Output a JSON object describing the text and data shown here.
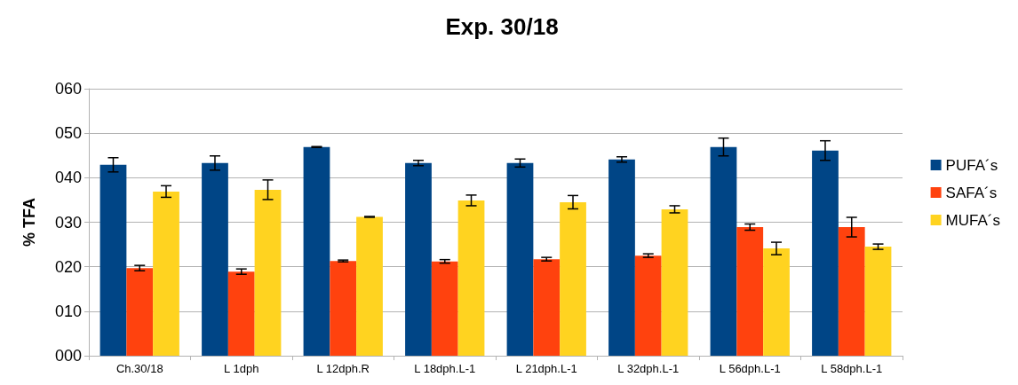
{
  "chart_data": {
    "type": "bar",
    "title": "Exp. 30/18",
    "ylabel": "% TFA",
    "categories": [
      "Ch.30/18",
      "L 1dph",
      "L 12dph.R",
      "L 18dph.L-1",
      "L 21dph.L-1",
      "L 32dph.L-1",
      "L 56dph.L-1",
      "L 58dph.L-1"
    ],
    "series": [
      {
        "name": "PUFA´s",
        "color": "#004586",
        "values": [
          42.9,
          43.3,
          46.9,
          43.3,
          43.3,
          44.1,
          46.9,
          46.1
        ],
        "errors": [
          1.6,
          1.6,
          0.1,
          0.6,
          0.9,
          0.6,
          2.0,
          2.2
        ]
      },
      {
        "name": "SAFA´s",
        "color": "#ff420e",
        "values": [
          19.7,
          18.9,
          21.3,
          21.2,
          21.7,
          22.5,
          28.9,
          28.9
        ],
        "errors": [
          0.6,
          0.6,
          0.2,
          0.4,
          0.4,
          0.4,
          0.7,
          2.2
        ]
      },
      {
        "name": "MUFA´s",
        "color": "#ffd320",
        "values": [
          36.9,
          37.3,
          31.2,
          34.9,
          34.5,
          32.9,
          24.1,
          24.5
        ],
        "errors": [
          1.3,
          2.2,
          0.1,
          1.2,
          1.5,
          0.8,
          1.4,
          0.6
        ]
      }
    ],
    "ylim": [
      0,
      60
    ],
    "yticks": [
      {
        "value": 0,
        "label": "000"
      },
      {
        "value": 10,
        "label": "010"
      },
      {
        "value": 20,
        "label": "020"
      },
      {
        "value": 30,
        "label": "030"
      },
      {
        "value": 40,
        "label": "040"
      },
      {
        "value": 50,
        "label": "050"
      },
      {
        "value": 60,
        "label": "060"
      }
    ],
    "grid": "y",
    "legend": "right"
  }
}
